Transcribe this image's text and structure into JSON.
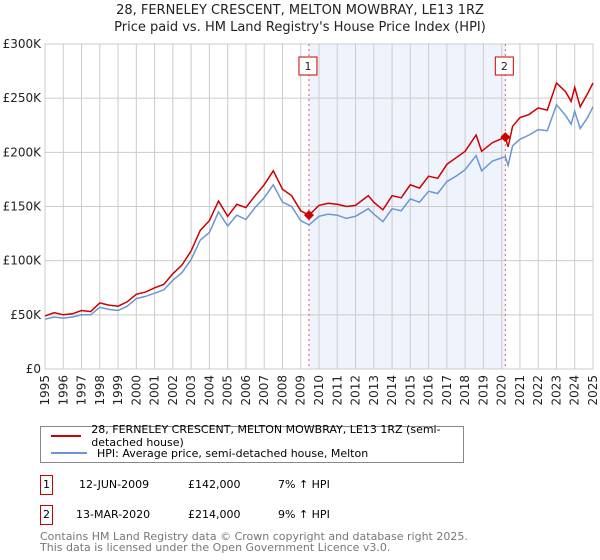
{
  "title_line1": "28, FERNELEY CRESCENT, MELTON MOWBRAY, LE13 1RZ",
  "title_line2": "Price paid vs. HM Land Registry's House Price Index (HPI)",
  "colors": {
    "property": "#cc0000",
    "hpi": "#6a96d2",
    "shade": "#eef3fc"
  },
  "chart_data": {
    "type": "line",
    "title": "Price paid vs. HM Land Registry's House Price Index (HPI)",
    "xlim": [
      1995,
      2025
    ],
    "ylim": [
      0,
      300000
    ],
    "yticks": [
      0,
      50000,
      100000,
      150000,
      200000,
      250000,
      300000
    ],
    "ytick_labels": [
      "£0",
      "£50K",
      "£100K",
      "£150K",
      "£200K",
      "£250K",
      "£300K"
    ],
    "xticks": [
      "1995",
      "1996",
      "1997",
      "1998",
      "1999",
      "2000",
      "2001",
      "2002",
      "2003",
      "2004",
      "2005",
      "2006",
      "2007",
      "2008",
      "2009",
      "2010",
      "2011",
      "2012",
      "2013",
      "2014",
      "2015",
      "2016",
      "2017",
      "2018",
      "2019",
      "2020",
      "2021",
      "2022",
      "2023",
      "2024",
      "2025"
    ],
    "grid": true,
    "series": [
      {
        "name": "28, FERNELEY CRESCENT, MELTON MOWBRAY, LE13 1RZ (semi-detached house)",
        "x": [
          1995,
          1995.5,
          1996,
          1996.5,
          1997,
          1997.5,
          1998,
          1998.5,
          1999,
          1999.5,
          2000,
          2000.5,
          2001,
          2001.5,
          2002,
          2002.5,
          2003,
          2003.5,
          2004,
          2004.5,
          2005,
          2005.5,
          2006,
          2006.5,
          2007,
          2007.5,
          2008,
          2008.5,
          2009,
          2009.45,
          2010,
          2010.5,
          2011,
          2011.5,
          2012,
          2012.7,
          2013,
          2013.5,
          2014,
          2014.5,
          2015,
          2015.5,
          2016,
          2016.5,
          2017,
          2017.5,
          2018,
          2018.6,
          2018.9,
          2019.5,
          2020.2,
          2020.35,
          2020.6,
          2021,
          2021.5,
          2022,
          2022.5,
          2023,
          2023.5,
          2023.8,
          2024,
          2024.3,
          2024.7,
          2025
        ],
        "y": [
          49000,
          52000,
          50000,
          51000,
          54000,
          53000,
          61000,
          59000,
          58000,
          62000,
          69000,
          71000,
          75000,
          78000,
          88000,
          96000,
          109000,
          128000,
          137000,
          155000,
          141000,
          152000,
          149000,
          160000,
          170000,
          183000,
          166000,
          160000,
          146000,
          142000,
          151000,
          153000,
          152000,
          150000,
          151000,
          160000,
          154000,
          147000,
          160000,
          158000,
          170000,
          167000,
          178000,
          176000,
          189000,
          195000,
          201000,
          216000,
          201000,
          209000,
          214000,
          205000,
          224000,
          232000,
          235000,
          241000,
          239000,
          264000,
          256000,
          247000,
          260000,
          242000,
          254000,
          264000
        ]
      },
      {
        "name": "HPI: Average price, semi-detached house, Melton",
        "x": [
          1995,
          1995.5,
          1996,
          1996.5,
          1997,
          1997.5,
          1998,
          1998.5,
          1999,
          1999.5,
          2000,
          2000.5,
          2001,
          2001.5,
          2002,
          2002.5,
          2003,
          2003.5,
          2004,
          2004.5,
          2005,
          2005.5,
          2006,
          2006.5,
          2007,
          2007.5,
          2008,
          2008.5,
          2009,
          2009.45,
          2010,
          2010.5,
          2011,
          2011.5,
          2012,
          2012.7,
          2013,
          2013.5,
          2014,
          2014.5,
          2015,
          2015.5,
          2016,
          2016.5,
          2017,
          2017.5,
          2018,
          2018.6,
          2018.9,
          2019.5,
          2020.2,
          2020.35,
          2020.6,
          2021,
          2021.5,
          2022,
          2022.5,
          2023,
          2023.5,
          2023.8,
          2024,
          2024.3,
          2024.7,
          2025
        ],
        "y": [
          46000,
          48000,
          47000,
          48000,
          50000,
          50000,
          57000,
          55000,
          54000,
          58000,
          65000,
          67000,
          70000,
          73000,
          82000,
          89000,
          101000,
          119000,
          126000,
          145000,
          132000,
          142000,
          138000,
          149000,
          158000,
          170000,
          154000,
          150000,
          137000,
          133000,
          141000,
          143000,
          142000,
          139000,
          141000,
          148000,
          143000,
          136000,
          148000,
          146000,
          157000,
          154000,
          164000,
          162000,
          173000,
          178000,
          184000,
          197000,
          183000,
          192000,
          196000,
          188000,
          206000,
          212000,
          216000,
          221000,
          220000,
          244000,
          234000,
          226000,
          238000,
          222000,
          232000,
          242000
        ]
      }
    ],
    "sales": [
      {
        "label": "1",
        "x": 2009.45,
        "price": 142000,
        "date": "12-JUN-2009",
        "price_text": "£142,000",
        "hpi_text": "7% ↑ HPI"
      },
      {
        "label": "2",
        "x": 2020.2,
        "price": 214000,
        "date": "13-MAR-2020",
        "price_text": "£214,000",
        "hpi_text": "9% ↑ HPI"
      }
    ],
    "legend": [
      "28, FERNELEY CRESCENT, MELTON MOWBRAY, LE13 1RZ (semi-detached house)",
      "HPI: Average price, semi-detached house, Melton"
    ],
    "legend_placement": "bottom"
  },
  "footer_line1": "Contains HM Land Registry data © Crown copyright and database right 2025.",
  "footer_line2": "This data is licensed under the Open Government Licence v3.0."
}
